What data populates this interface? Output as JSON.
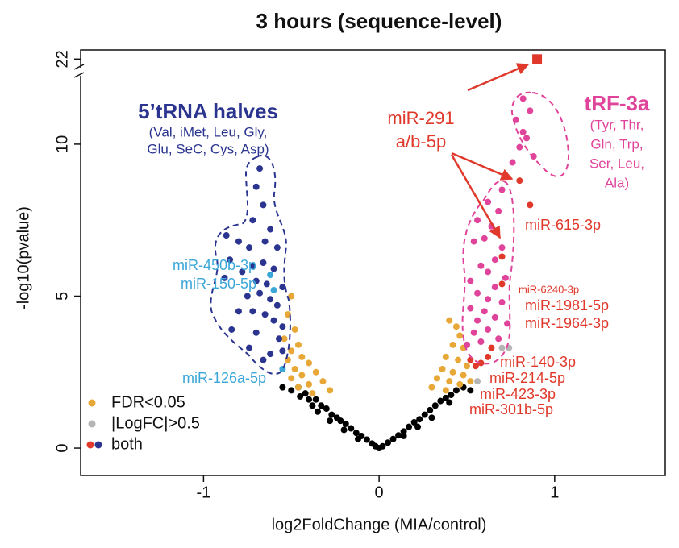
{
  "chart_data": {
    "type": "scatter",
    "title": "3 hours (sequence-level)",
    "xlabel": "log2FoldChange (MIA/control)",
    "ylabel": "-log10(pvalue)",
    "xlim": [
      -1.7,
      1.63
    ],
    "ylim": [
      -0.9,
      22.3
    ],
    "y_break": [
      12.2,
      21.4
    ],
    "xticks": [
      -1,
      0,
      1
    ],
    "yticks": [
      0,
      5,
      10,
      22
    ],
    "legend": "lower left",
    "series": [
      {
        "color": "#000000",
        "x": [
          -0.55,
          -0.5,
          -0.46,
          -0.42,
          -0.4,
          -0.36,
          -0.33,
          -0.3,
          -0.27,
          -0.24,
          -0.22,
          -0.19,
          -0.16,
          -0.13,
          -0.1,
          -0.07,
          -0.04,
          -0.02,
          -0.35,
          -0.28,
          -0.2,
          -0.12,
          -0.45,
          -0.38,
          0.02,
          0.05,
          0.08,
          0.11,
          0.14,
          0.17,
          0.2,
          0.23,
          0.26,
          0.29,
          0.32,
          0.35,
          0.38,
          0.41,
          0.44,
          0.48,
          0.52,
          0.3,
          0.22,
          0.14,
          0.4,
          0.0
        ],
        "y": [
          2.0,
          1.9,
          2.0,
          1.8,
          1.6,
          1.6,
          1.4,
          1.3,
          1.1,
          1.0,
          0.9,
          0.8,
          0.65,
          0.5,
          0.4,
          0.28,
          0.15,
          0.06,
          1.2,
          0.9,
          0.6,
          0.3,
          1.7,
          1.4,
          0.06,
          0.18,
          0.3,
          0.42,
          0.55,
          0.7,
          0.85,
          0.95,
          1.1,
          1.25,
          1.4,
          1.55,
          1.65,
          1.75,
          1.9,
          2.0,
          1.9,
          1.0,
          0.7,
          0.4,
          1.5,
          0.0
        ]
      },
      {
        "name": "FDR<0.05",
        "color": "#e8a838",
        "x": [
          -0.5,
          -0.52,
          -0.48,
          -0.54,
          -0.46,
          -0.5,
          -0.44,
          -0.52,
          -0.4,
          -0.48,
          -0.36,
          -0.44,
          -0.5,
          -0.32,
          -0.4,
          -0.46,
          -0.28,
          -0.38,
          0.4,
          0.44,
          0.46,
          0.42,
          0.48,
          0.38,
          0.45,
          0.5,
          0.36,
          0.42,
          0.48,
          0.33,
          0.4,
          0.46,
          0.3,
          0.38,
          0.52
        ],
        "y": [
          5.0,
          4.4,
          3.9,
          3.6,
          3.4,
          3.2,
          3.0,
          2.9,
          2.8,
          2.6,
          2.5,
          2.4,
          2.3,
          2.2,
          2.1,
          2.0,
          1.9,
          1.8,
          4.2,
          4.0,
          3.7,
          3.4,
          3.3,
          3.0,
          2.9,
          2.7,
          2.6,
          2.5,
          2.4,
          2.3,
          2.2,
          2.1,
          2.0,
          1.9,
          2.2
        ]
      },
      {
        "name": "|LogFC|>0.5",
        "color": "#b5b5b5",
        "x": [
          0.7,
          0.74,
          0.56
        ],
        "y": [
          3.3,
          3.3,
          2.2
        ]
      },
      {
        "name": "both",
        "legend_colors": [
          "#e0392b",
          "#2b3590"
        ],
        "x": [
          -0.68,
          -0.7,
          -0.66,
          -0.72,
          -0.62,
          -0.87,
          -0.8,
          -0.65,
          -0.74,
          -0.58,
          -0.85,
          -0.72,
          -0.66,
          -0.78,
          -0.6,
          -0.88,
          -0.7,
          -0.64,
          -0.55,
          -0.75,
          -0.68,
          -0.62,
          -0.58,
          -0.8,
          -0.72,
          -0.65,
          -0.6,
          -0.55,
          -0.84,
          -0.7,
          -0.57,
          -0.74,
          -0.62,
          -0.55,
          -0.66,
          -0.62,
          -0.6,
          -0.55,
          0.8,
          0.86,
          0.7,
          0.7,
          0.64,
          0.62,
          0.58,
          0.55,
          0.52,
          0.82,
          0.86,
          0.78,
          0.84,
          0.8,
          0.88,
          0.76,
          0.82,
          0.7,
          0.62,
          0.68,
          0.56,
          0.64,
          0.6,
          0.7,
          0.54,
          0.66,
          0.58,
          0.62,
          0.72,
          0.52,
          0.66,
          0.56,
          0.62,
          0.7,
          0.52,
          0.6,
          0.66,
          0.56,
          0.73,
          0.62,
          0.54,
          0.68,
          0.58,
          0.5
        ],
        "y": [
          9.2,
          8.6,
          8.0,
          7.5,
          7.2,
          7.0,
          6.8,
          6.8,
          6.6,
          6.6,
          6.2,
          6.0,
          6.1,
          5.8,
          5.9,
          5.6,
          5.5,
          5.4,
          5.3,
          5.0,
          5.1,
          4.9,
          4.7,
          4.5,
          4.5,
          4.4,
          4.2,
          4.0,
          3.9,
          3.8,
          3.6,
          3.3,
          3.1,
          3.2,
          2.9,
          5.7,
          5.2,
          2.6,
          8.8,
          8.0,
          6.3,
          5.4,
          3.3,
          3.0,
          2.8,
          2.7,
          2.9,
          11.5,
          11.1,
          10.8,
          10.2,
          9.9,
          9.6,
          9.4,
          10.4,
          8.5,
          8.1,
          7.8,
          7.5,
          7.3,
          6.9,
          6.6,
          6.8,
          6.2,
          6.0,
          5.8,
          5.6,
          5.5,
          5.3,
          5.1,
          4.9,
          4.8,
          4.6,
          4.5,
          4.3,
          4.2,
          4.1,
          3.9,
          3.8,
          3.6,
          3.5,
          3.4
        ],
        "colors": [
          "#2b3590",
          "#2b3590",
          "#2b3590",
          "#2b3590",
          "#2b3590",
          "#2b3590",
          "#2b3590",
          "#2b3590",
          "#2b3590",
          "#2b3590",
          "#2b3590",
          "#2b3590",
          "#2b3590",
          "#2b3590",
          "#2b3590",
          "#2b3590",
          "#2b3590",
          "#2b3590",
          "#2b3590",
          "#2b3590",
          "#2b3590",
          "#2b3590",
          "#2b3590",
          "#2b3590",
          "#2b3590",
          "#2b3590",
          "#2b3590",
          "#2b3590",
          "#2b3590",
          "#2b3590",
          "#2b3590",
          "#2b3590",
          "#2b3590",
          "#2b3590",
          "#2b3590",
          "#3ba7d8",
          "#3ba7d8",
          "#3ba7d8",
          "#e0392b",
          "#e0392b",
          "#e0392b",
          "#e0392b",
          "#e0392b",
          "#e0392b",
          "#e0392b",
          "#e0392b",
          "#e0392b",
          "#e0449a",
          "#e0449a",
          "#e0449a",
          "#e0449a",
          "#e0449a",
          "#e0449a",
          "#e0449a",
          "#e0449a",
          "#e0449a",
          "#e0449a",
          "#e0449a",
          "#e0449a",
          "#e0449a",
          "#e0449a",
          "#e0449a",
          "#e0449a",
          "#e0449a",
          "#e0449a",
          "#e0449a",
          "#e0449a",
          "#e0449a",
          "#e0449a",
          "#e0449a",
          "#e0449a",
          "#e0449a",
          "#e0449a",
          "#e0449a",
          "#e0449a",
          "#e0449a",
          "#e0449a",
          "#e0449a",
          "#e0449a",
          "#e0449a",
          "#e0449a",
          "#e0449a"
        ]
      },
      {
        "color": "#e0392b",
        "marker": "square",
        "x": [
          0.9
        ],
        "y": [
          22
        ]
      }
    ],
    "annotations": [
      {
        "text": "5’tRNA halves",
        "color": "#2b3590"
      },
      {
        "text": "(Val, iMet, Leu, Gly,",
        "color": "#2b3590"
      },
      {
        "text": "Glu, SeC, Cys, Asp)",
        "color": "#2b3590"
      },
      {
        "text": "tRF-3a",
        "color": "#e0449a"
      },
      {
        "text": "(Tyr, Thr,",
        "color": "#e0449a"
      },
      {
        "text": "Gln, Trp,",
        "color": "#e0449a"
      },
      {
        "text": "Ser, Leu,",
        "color": "#e0449a"
      },
      {
        "text": "Ala)",
        "color": "#e0449a"
      },
      {
        "text": "miR-291",
        "color": "#e0392b"
      },
      {
        "text": "a/b-5p",
        "color": "#e0392b"
      },
      {
        "text": "miR-615-3p",
        "color": "#e0392b"
      },
      {
        "text": "miR-6240-3p",
        "color": "#e0392b"
      },
      {
        "text": "miR-1981-5p",
        "color": "#e0392b"
      },
      {
        "text": "miR-1964-3p",
        "color": "#e0392b"
      },
      {
        "text": "miR-140-3p",
        "color": "#e0392b"
      },
      {
        "text": "miR-214-5p",
        "color": "#e0392b"
      },
      {
        "text": "miR-423-3p",
        "color": "#e0392b"
      },
      {
        "text": "miR-301b-5p",
        "color": "#e0392b"
      },
      {
        "text": "miR-450b-3p",
        "color": "#3ba7d8"
      },
      {
        "text": "miR-150-5p",
        "color": "#3ba7d8"
      },
      {
        "text": "miR-126a-5p",
        "color": "#3ba7d8"
      }
    ]
  }
}
